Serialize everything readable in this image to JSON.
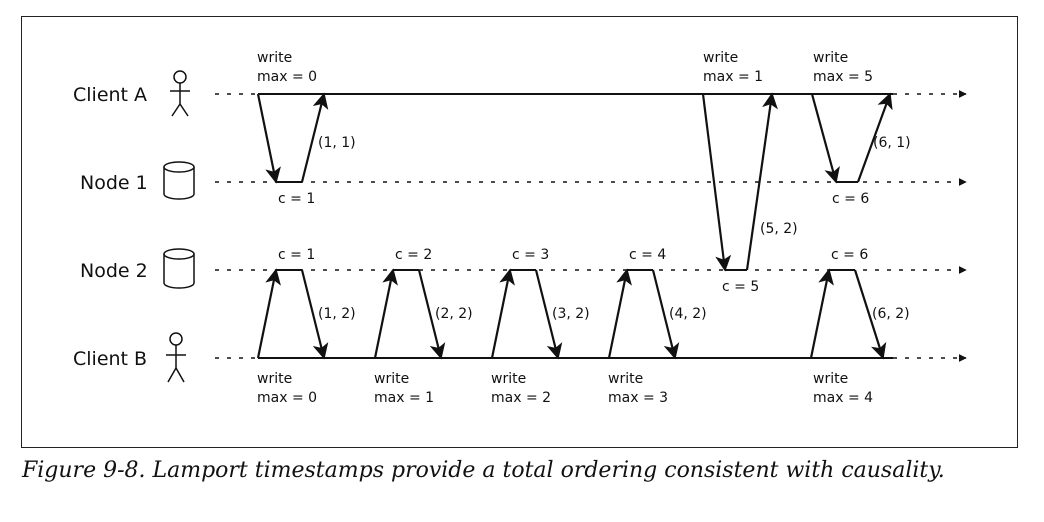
{
  "lanes": {
    "client_a": "Client A",
    "node_1": "Node 1",
    "node_2": "Node 2",
    "client_b": "Client B"
  },
  "client_a_requests": [
    {
      "line1": "write",
      "line2": "max = 0"
    },
    {
      "line1": "write",
      "line2": "max = 1"
    },
    {
      "line1": "write",
      "line2": "max = 5"
    }
  ],
  "client_a_responses": [
    "(1, 1)",
    "(5, 2)",
    "(6, 1)"
  ],
  "node_1_counters": [
    "c = 1",
    "c = 6"
  ],
  "node_2_counters": [
    "c = 1",
    "c = 2",
    "c = 3",
    "c = 4",
    "c = 5",
    "c = 6"
  ],
  "client_b_responses": [
    "(1, 2)",
    "(2, 2)",
    "(3, 2)",
    "(4, 2)",
    "(6, 2)"
  ],
  "client_b_requests": [
    {
      "line1": "write",
      "line2": "max = 0"
    },
    {
      "line1": "write",
      "line2": "max = 1"
    },
    {
      "line1": "write",
      "line2": "max = 2"
    },
    {
      "line1": "write",
      "line2": "max = 3"
    },
    {
      "line1": "write",
      "line2": "max = 4"
    }
  ],
  "caption": "Figure 9-8. Lamport timestamps provide a total ordering consistent with causality."
}
